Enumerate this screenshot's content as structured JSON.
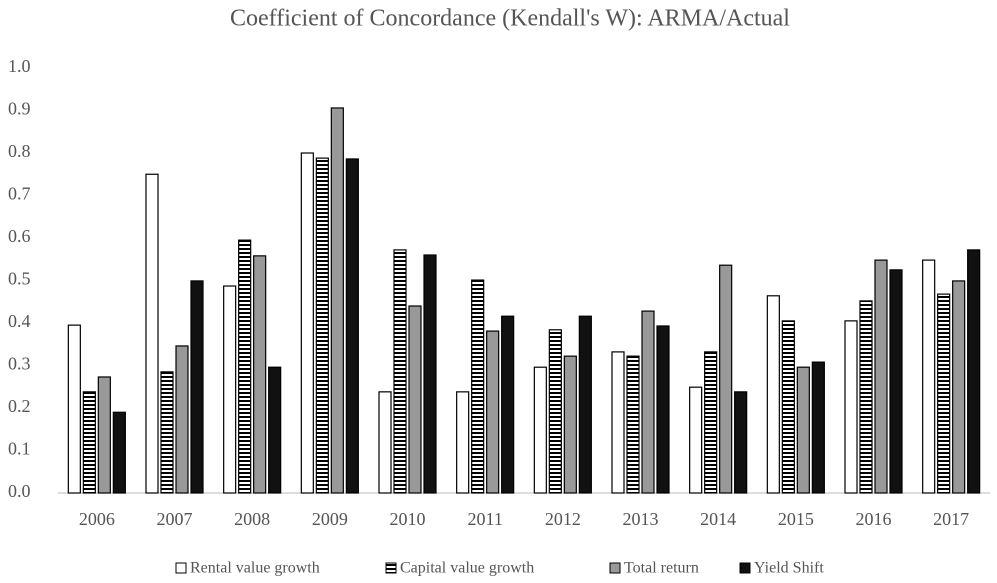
{
  "chart_data": {
    "type": "bar",
    "title": "Coefficient of Concordance (Kendall's W): ARMA/Actual",
    "categories": [
      "2006",
      "2007",
      "2008",
      "2009",
      "2010",
      "2011",
      "2012",
      "2013",
      "2014",
      "2015",
      "2016",
      "2017"
    ],
    "series": [
      {
        "name": "Rental value growth",
        "color": "#ffffff",
        "pattern": "solid",
        "values": [
          0.395,
          0.75,
          0.487,
          0.8,
          0.238,
          0.238,
          0.296,
          0.332,
          0.249,
          0.464,
          0.405,
          0.548
        ]
      },
      {
        "name": "Capital value growth",
        "color": "#000000",
        "pattern": "horizontal-lines",
        "values": [
          0.238,
          0.285,
          0.595,
          0.788,
          0.572,
          0.501,
          0.384,
          0.322,
          0.332,
          0.405,
          0.452,
          0.468
        ]
      },
      {
        "name": "Total return",
        "color": "#999999",
        "pattern": "solid",
        "values": [
          0.273,
          0.346,
          0.558,
          0.906,
          0.44,
          0.381,
          0.322,
          0.428,
          0.536,
          0.296,
          0.548,
          0.499
        ]
      },
      {
        "name": "Yield Shift",
        "color": "#111111",
        "pattern": "solid",
        "values": [
          0.19,
          0.499,
          0.296,
          0.786,
          0.56,
          0.416,
          0.416,
          0.393,
          0.238,
          0.308,
          0.525,
          0.572
        ]
      }
    ],
    "ylim": [
      0,
      1
    ],
    "yticks": [
      {
        "value": 0,
        "label": "0.0"
      },
      0.1,
      0.2,
      0.3,
      0.4,
      0.5,
      0.6,
      0.7,
      0.8,
      0.9,
      {
        "value": 1,
        "label": "1.0"
      }
    ],
    "grid": false,
    "legend": "bottom"
  }
}
